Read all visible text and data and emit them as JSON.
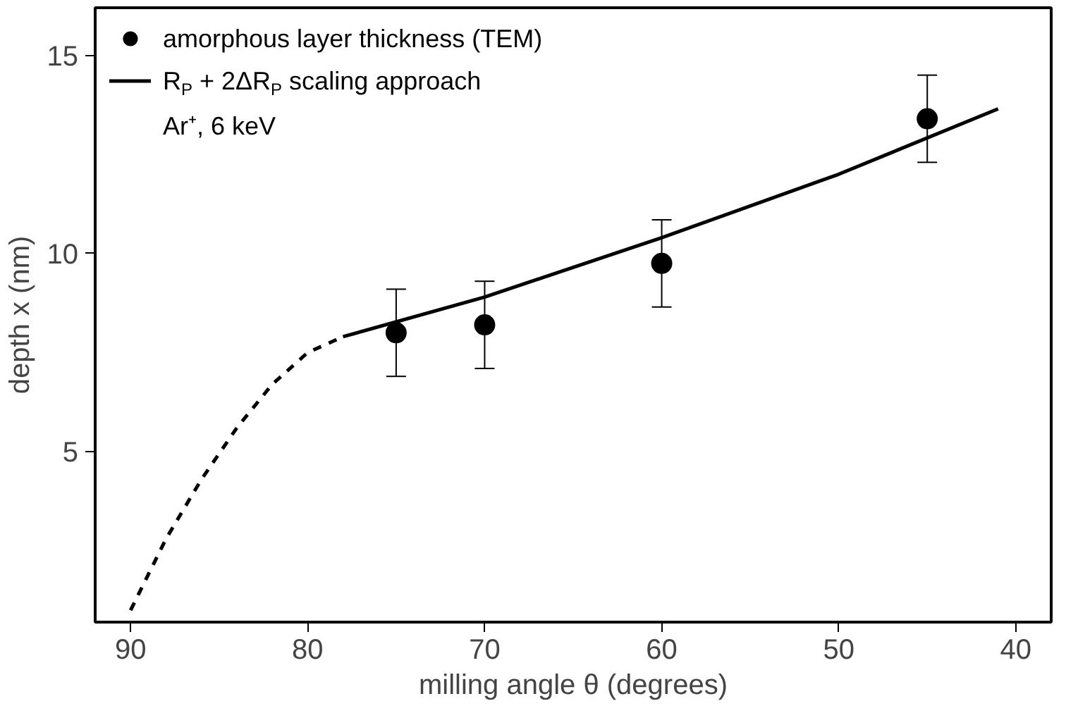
{
  "chart_data": {
    "type": "scatter",
    "xlabel": "milling angle θ (degrees)",
    "ylabel": "depth x (nm)",
    "xlim": [
      92,
      38
    ],
    "ylim": [
      0.7,
      16.2
    ],
    "xticks": [
      90,
      80,
      70,
      60,
      50,
      40
    ],
    "yticks": [
      5,
      10,
      15
    ],
    "grid": false,
    "legend": "top left",
    "annotations": [
      "Ar⁺, 6 keV"
    ],
    "series": [
      {
        "name": "amorphous layer thickness (TEM)",
        "marker": "circle",
        "color": "#000000",
        "x": [
          75,
          70,
          60,
          45
        ],
        "values": [
          8.0,
          8.2,
          9.75,
          13.4
        ],
        "errors": [
          1.1,
          1.1,
          1.1,
          1.1
        ]
      },
      {
        "name": "R$_{P}$ + 2ΔR$_{P}$ scaling approach",
        "type": "line",
        "line_style": "solid",
        "color": "#000000",
        "x": [
          78,
          70,
          60,
          50,
          41
        ],
        "values": [
          7.9,
          8.9,
          10.4,
          12.0,
          13.65
        ]
      },
      {
        "type": "line",
        "line_style": "dashed",
        "color": "#000000",
        "x": [
          90,
          88,
          86,
          84,
          82,
          80,
          78
        ],
        "values": [
          1.0,
          2.8,
          4.3,
          5.6,
          6.7,
          7.5,
          7.9
        ]
      }
    ]
  }
}
